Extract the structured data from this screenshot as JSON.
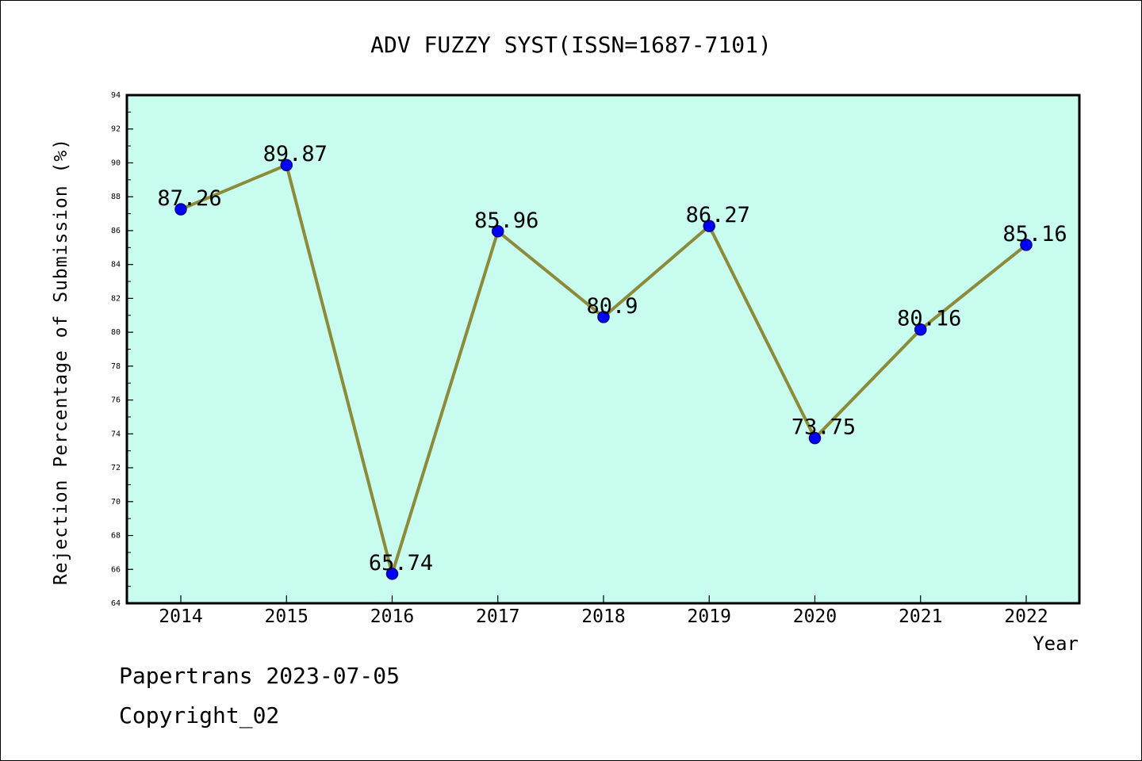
{
  "chart_data": {
    "type": "line",
    "title": "ADV FUZZY SYST(ISSN=1687-7101)",
    "xlabel": "Year",
    "ylabel": "Rejection Percentage of Submission (%)",
    "categories": [
      "2014",
      "2015",
      "2016",
      "2017",
      "2018",
      "2019",
      "2020",
      "2021",
      "2022"
    ],
    "values": [
      87.26,
      89.87,
      65.74,
      85.96,
      80.9,
      86.27,
      73.75,
      80.16,
      85.16
    ],
    "data_labels": [
      "87.26",
      "89.87",
      "65.74",
      "85.96",
      "80.9",
      "86.27",
      "73.75",
      "80.16",
      "85.16"
    ],
    "ylim": [
      64,
      94
    ],
    "yticks": [
      "64",
      "66",
      "68",
      "70",
      "72",
      "74",
      "76",
      "78",
      "80",
      "82",
      "84",
      "86",
      "88",
      "90",
      "92",
      "94"
    ],
    "grid": false,
    "legend": "none",
    "colors": {
      "plot_background": "#c8fcee",
      "line": "#8b8b3a",
      "marker": "#0000ff",
      "marker_edge": "#00008b"
    }
  },
  "footer": {
    "line1": "Papertrans 2023-07-05",
    "line2": "Copyright_02"
  }
}
